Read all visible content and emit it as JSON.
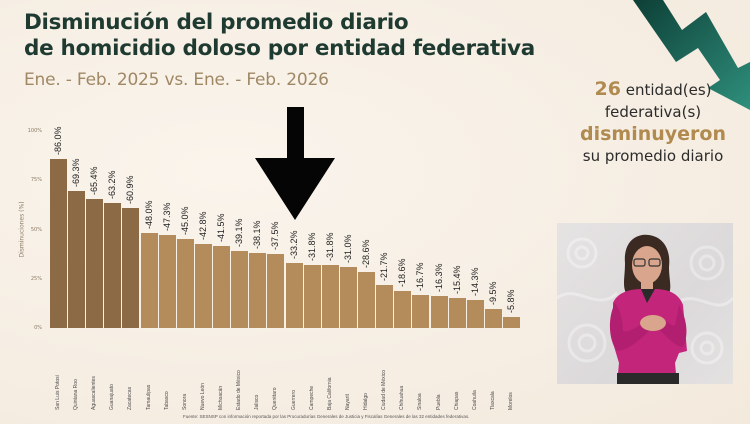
{
  "header": {
    "title_line1": "Disminución del promedio diario",
    "title_line2": "de homicidio doloso por entidad federativa",
    "subtitle": "Ene. - Feb. 2025 vs. Ene. - Feb. 2026"
  },
  "callout": {
    "count": "26",
    "line1_rest": "entidad(es)",
    "line2": "federativa(s)",
    "line3": "disminuyeron",
    "line4": "su promedio diario"
  },
  "source": "Fuente: SESNSP con información reportada por las Procuradurías Generales de Justicia y Fiscalías Generales de las 32 entidades federativas.",
  "colors": {
    "title": "#1f3a30",
    "subtitle": "#a08864",
    "bar_dark": "#8b6a45",
    "bar_light": "#b48b5b",
    "accent_gold": "#b08a4e",
    "arrow_green_dark": "#0f4a3f",
    "arrow_green_light": "#2e8a78"
  },
  "icons": {
    "down_arrow": "black-down-arrow-icon",
    "trend_arrow": "green-zigzag-down-arrow-icon"
  },
  "video_inset": {
    "description": "sign-language-interpreter"
  },
  "chart_data": {
    "type": "bar",
    "title": "Disminución del promedio diario de homicidio doloso por entidad federativa",
    "subtitle": "Ene. - Feb. 2025 vs. Ene. - Feb. 2026",
    "xlabel": "",
    "ylabel": "Disminuciones (%)",
    "ylim": [
      0,
      100
    ],
    "yticks": [
      "0%",
      "25%",
      "50%",
      "75%",
      "100%"
    ],
    "grid": false,
    "legend": "none",
    "categories": [
      "San Luis Potosí",
      "Quintana Roo",
      "Aguascalientes",
      "Guanajuato",
      "Zacatecas",
      "Tamaulipas",
      "Tabasco",
      "Sonora",
      "Nuevo León",
      "Michoacán",
      "Estado de México",
      "Jalisco",
      "Querétaro",
      "Guerrero",
      "Campeche",
      "Baja California",
      "Nayarit",
      "Hidalgo",
      "Ciudad de México",
      "Chihuahua",
      "Sinaloa",
      "Puebla",
      "Chiapas",
      "Coahuila",
      "Tlaxcala",
      "Morelos"
    ],
    "values": [
      86.0,
      69.3,
      65.4,
      63.2,
      60.9,
      48.0,
      47.3,
      45.0,
      42.8,
      41.5,
      39.1,
      38.1,
      37.5,
      33.2,
      31.8,
      31.8,
      31.0,
      28.6,
      21.7,
      18.6,
      16.7,
      16.3,
      15.4,
      14.3,
      9.5,
      5.8
    ],
    "labels": [
      "-86.0%",
      "-69.3%",
      "-65.4%",
      "-63.2%",
      "-60.9%",
      "-48.0%",
      "-47.3%",
      "-45.0%",
      "-42.8%",
      "-41.5%",
      "-39.1%",
      "-38.1%",
      "-37.5%",
      "-33.2%",
      "-31.8%",
      "-31.8%",
      "-31.0%",
      "-28.6%",
      "-21.7%",
      "-18.6%",
      "-16.7%",
      "-16.3%",
      "-15.4%",
      "-14.3%",
      "-9.5%",
      "-5.8%"
    ],
    "highlight_top_n": 5
  }
}
